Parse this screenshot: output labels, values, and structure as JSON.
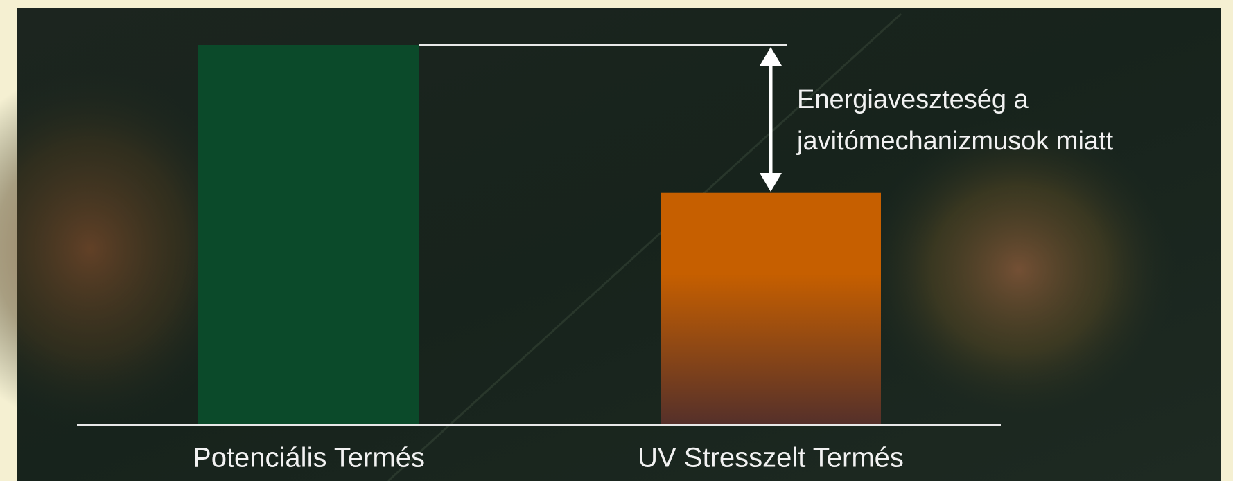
{
  "chart_data": {
    "type": "bar",
    "categories": [
      "Potenciális Termés",
      "UV Stresszelt Termés"
    ],
    "values": [
      100,
      61
    ],
    "colors": [
      "#0b4a2a",
      "#c65f00"
    ],
    "ylim": [
      0,
      100
    ],
    "annotation": [
      "Energiaveszteség a",
      "javitómechanizmusok miatt"
    ]
  }
}
